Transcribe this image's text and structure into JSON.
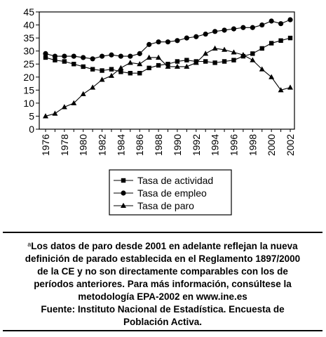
{
  "chart_data": {
    "type": "line",
    "x": [
      1976,
      1977,
      1978,
      1979,
      1980,
      1981,
      1982,
      1983,
      1984,
      1985,
      1986,
      1987,
      1988,
      1989,
      1990,
      1991,
      1992,
      1993,
      1994,
      1995,
      1996,
      1997,
      1998,
      1999,
      2000,
      2001,
      2002
    ],
    "xticks": [
      "1976",
      "1978",
      "1980",
      "1982",
      "1984",
      "1986",
      "1988",
      "1990",
      "1992",
      "1994",
      "1996",
      "1998",
      "2000",
      "2002"
    ],
    "ylim": [
      0,
      45
    ],
    "yticks": [
      0,
      5,
      10,
      15,
      20,
      25,
      30,
      35,
      40,
      45
    ],
    "grid": false,
    "legend_placement": "below",
    "series": [
      {
        "name": "Tasa de actividad",
        "marker": "square",
        "values": [
          27.5,
          26.5,
          26.0,
          25.0,
          24.0,
          23.0,
          22.5,
          23.0,
          22.0,
          21.5,
          21.5,
          23.5,
          24.5,
          25.0,
          26.0,
          26.5,
          26.0,
          26.0,
          25.5,
          26.0,
          26.5,
          28.0,
          29.0,
          31.0,
          33.0,
          34.0,
          35.0
        ]
      },
      {
        "name": "Tasa de empleo",
        "marker": "circle",
        "values": [
          29.0,
          28.0,
          28.0,
          28.0,
          27.5,
          27.0,
          28.0,
          28.5,
          28.0,
          28.0,
          29.0,
          32.5,
          33.5,
          33.5,
          34.0,
          35.0,
          35.5,
          36.5,
          37.5,
          38.0,
          38.5,
          39.0,
          39.0,
          40.0,
          41.5,
          40.5,
          42.0
        ]
      },
      {
        "name": "Tasa de paro",
        "marker": "triangle",
        "values": [
          5.0,
          6.0,
          8.5,
          10.0,
          13.5,
          16.0,
          19.0,
          20.5,
          23.5,
          25.5,
          25.0,
          27.5,
          27.5,
          24.0,
          24.0,
          24.0,
          25.5,
          29.0,
          31.0,
          30.5,
          29.5,
          28.5,
          26.5,
          23.0,
          20.0,
          15.0,
          16.0
        ]
      }
    ]
  },
  "note": {
    "marker": "a",
    "lines": [
      "Los datos de paro desde 2001 en adelante reflejan la nueva",
      "definición de parado establecida en el Reglamento 1897/2000",
      "de la CE y no son directamente comparables con los de",
      "períodos anteriores. Para más información, consúltese la",
      "metodología EPA-2002 en www.ine.es",
      "Fuente: Instituto Nacional de Estadística. Encuesta de",
      "Población Activa."
    ]
  }
}
